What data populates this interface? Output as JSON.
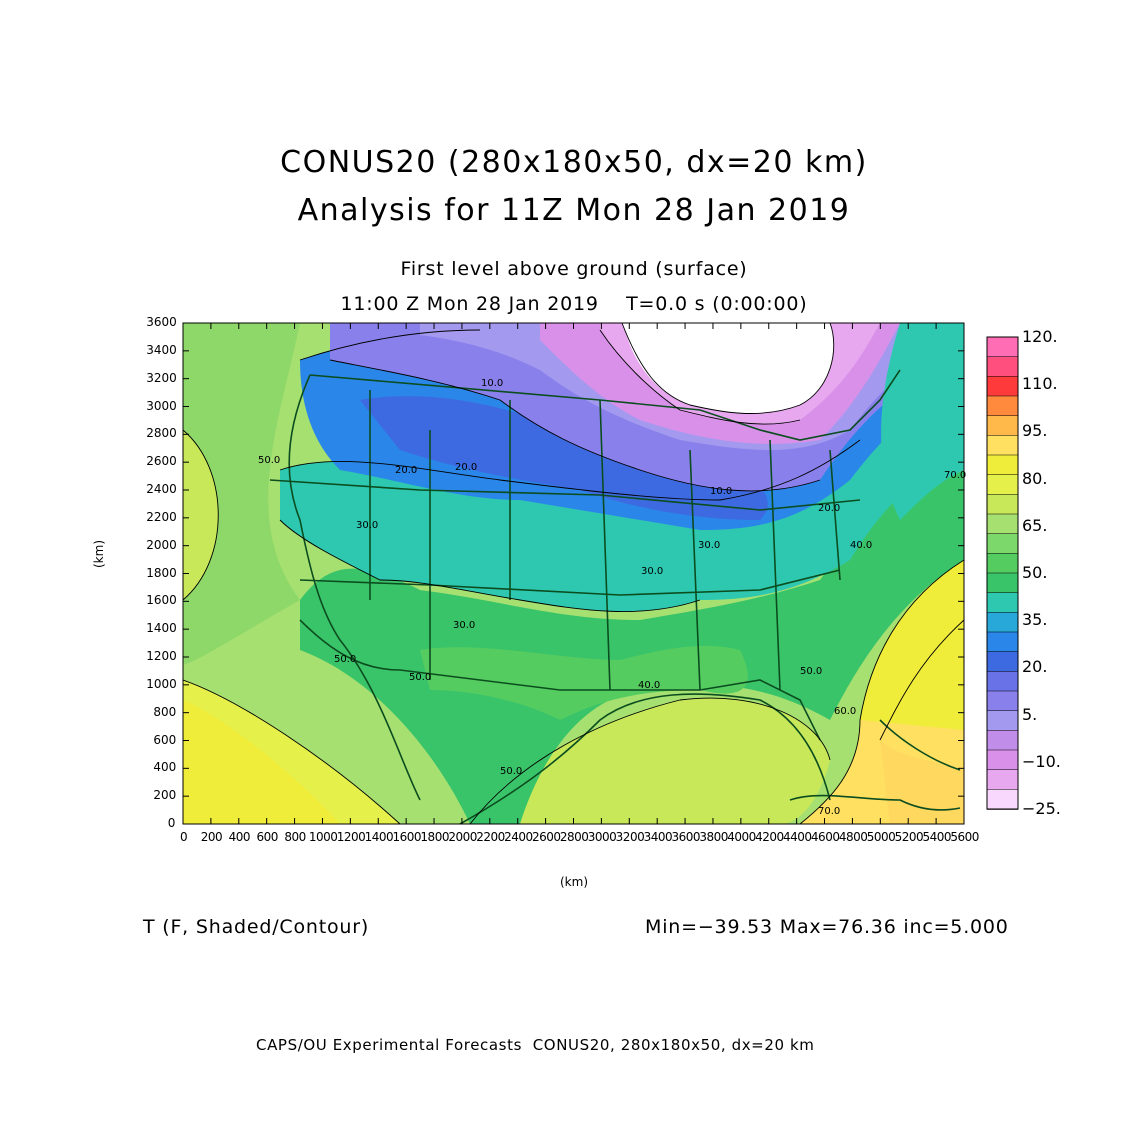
{
  "title_line1": "CONUS20 (280x180x50, dx=20 km)",
  "title_line2": "Analysis for 11Z Mon 28 Jan 2019",
  "subtitle_level": "First level above ground (surface)",
  "subtitle_time": "11:00 Z Mon 28 Jan 2019    T=0.0 s (0:00:00)",
  "axes": {
    "xlabel": "(km)",
    "ylabel": "(km)",
    "x_ticks": [
      "0",
      "200",
      "400",
      "600",
      "800",
      "1000",
      "1200",
      "1400",
      "1600",
      "1800",
      "2000",
      "2200",
      "2400",
      "2600",
      "2800",
      "3000",
      "3200",
      "3400",
      "3600",
      "3800",
      "4000",
      "4200",
      "4400",
      "4600",
      "4800",
      "5000",
      "5200",
      "5400",
      "5600"
    ],
    "y_ticks": [
      "0",
      "200",
      "400",
      "600",
      "800",
      "1000",
      "1200",
      "1400",
      "1600",
      "1800",
      "2000",
      "2200",
      "2400",
      "2600",
      "2800",
      "3000",
      "3200",
      "3400",
      "3600"
    ],
    "xlim": [
      0,
      5600
    ],
    "ylim": [
      0,
      3600
    ]
  },
  "colorbar": {
    "labels": [
      "120.",
      "110.",
      "95.",
      "80.",
      "65.",
      "50.",
      "35.",
      "20.",
      "5.",
      "−10.",
      "−25."
    ],
    "colors": [
      "#ff6eb4",
      "#ff4f7e",
      "#ff3a3a",
      "#ff8a3d",
      "#ffb84a",
      "#ffe060",
      "#f0ec3a",
      "#e6f04a",
      "#c8e85a",
      "#a6e070",
      "#7cd86a",
      "#55cc60",
      "#3ac46a",
      "#2ec8b0",
      "#28a8d8",
      "#2a86e8",
      "#3d6ae0",
      "#6a72e8",
      "#8a80ec",
      "#a39af0",
      "#c08ee8",
      "#d890e8",
      "#e8a8f0",
      "#f8d8fc"
    ]
  },
  "contour_labels": [
    "10.0",
    "20.0",
    "20.0",
    "10.0",
    "20.0",
    "30.0",
    "30.0",
    "30.0",
    "50.0",
    "40.0",
    "50.0",
    "50.0",
    "60.0",
    "50.0",
    "70.0",
    "70.0",
    "40.0",
    "30.0",
    "50.0"
  ],
  "footer_var": "T (F, Shaded/Contour)",
  "footer_stats": "Min=−39.53 Max=76.36 inc=5.000",
  "credit": "CAPS/OU Experimental Forecasts  CONUS20, 280x180x50, dx=20 km"
}
